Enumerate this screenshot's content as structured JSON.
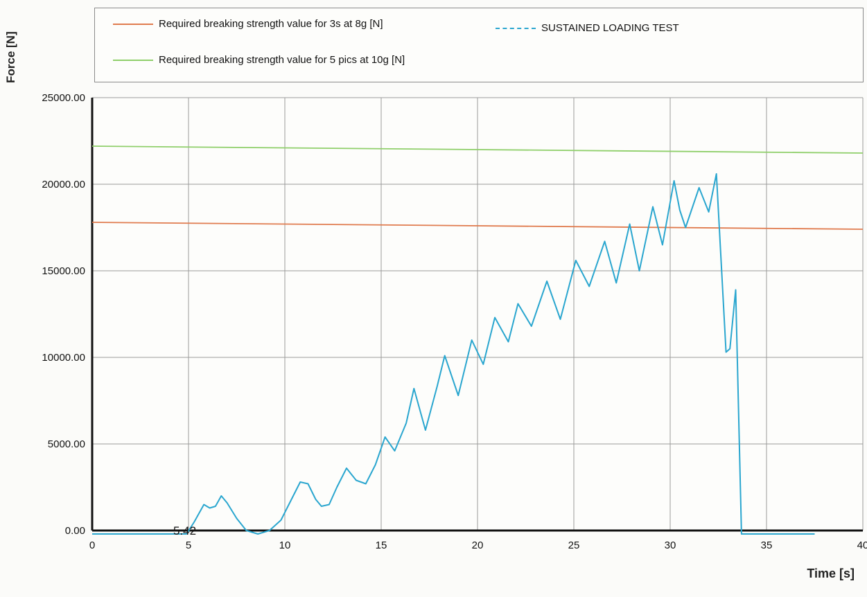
{
  "chart_data": {
    "type": "line",
    "ylabel": "Force [N]",
    "xlabel": "Time [s]",
    "xlim": [
      0,
      40
    ],
    "ylim": [
      0,
      25000
    ],
    "x_ticks": [
      0,
      5,
      10,
      15,
      20,
      25,
      30,
      35,
      40
    ],
    "y_ticks": [
      "0.00",
      "5000.00",
      "10000.00",
      "15000.00",
      "20000.00",
      "25000.00"
    ],
    "y_tick_values": [
      0,
      5000,
      10000,
      15000,
      20000,
      25000
    ],
    "grid": true,
    "legend_position": "top",
    "annotation": "5.42",
    "annotation_at": [
      5.0,
      0
    ],
    "series": [
      {
        "name": "Required breaking strength value for 3s at 8g [N]",
        "color": "#e07b4e",
        "x": [
          0,
          40
        ],
        "y": [
          17800,
          17400
        ]
      },
      {
        "name": "SUSTAINED LOADING TEST",
        "color": "#2aa6cf",
        "x": [
          0,
          4.9,
          5.3,
          5.8,
          6.1,
          6.4,
          6.7,
          7.0,
          7.5,
          8.0,
          8.6,
          9.2,
          9.8,
          10.3,
          10.8,
          11.2,
          11.6,
          11.9,
          12.3,
          12.7,
          13.2,
          13.7,
          14.2,
          14.7,
          15.2,
          15.7,
          16.3,
          16.7,
          17.3,
          17.9,
          18.3,
          19.0,
          19.7,
          20.3,
          20.9,
          21.6,
          22.1,
          22.8,
          23.6,
          24.3,
          25.1,
          25.8,
          26.6,
          27.2,
          27.9,
          28.4,
          29.1,
          29.6,
          30.2,
          30.5,
          30.8,
          31.5,
          32.0,
          32.4,
          32.9,
          33.1,
          33.4,
          33.7,
          34.0,
          35.0,
          36.5,
          37.5
        ],
        "y": [
          -200,
          -200,
          500,
          1500,
          1300,
          1400,
          2000,
          1600,
          700,
          0,
          -200,
          0,
          600,
          1700,
          2800,
          2700,
          1800,
          1400,
          1500,
          2500,
          3600,
          2900,
          2700,
          3800,
          5400,
          4600,
          6200,
          8200,
          5800,
          8300,
          10100,
          7800,
          11000,
          9600,
          12300,
          10900,
          13100,
          11800,
          14400,
          12200,
          15600,
          14100,
          16700,
          14300,
          17700,
          15000,
          18700,
          16500,
          20200,
          18500,
          17500,
          19800,
          18400,
          20600,
          10300,
          10500,
          13900,
          -200,
          -200,
          -200,
          -200,
          -200
        ]
      },
      {
        "name": "Required breaking strength value for 5 pics at 10g [N]",
        "color": "#8fcf6a",
        "x": [
          0,
          40
        ],
        "y": [
          22200,
          21800
        ]
      }
    ]
  }
}
